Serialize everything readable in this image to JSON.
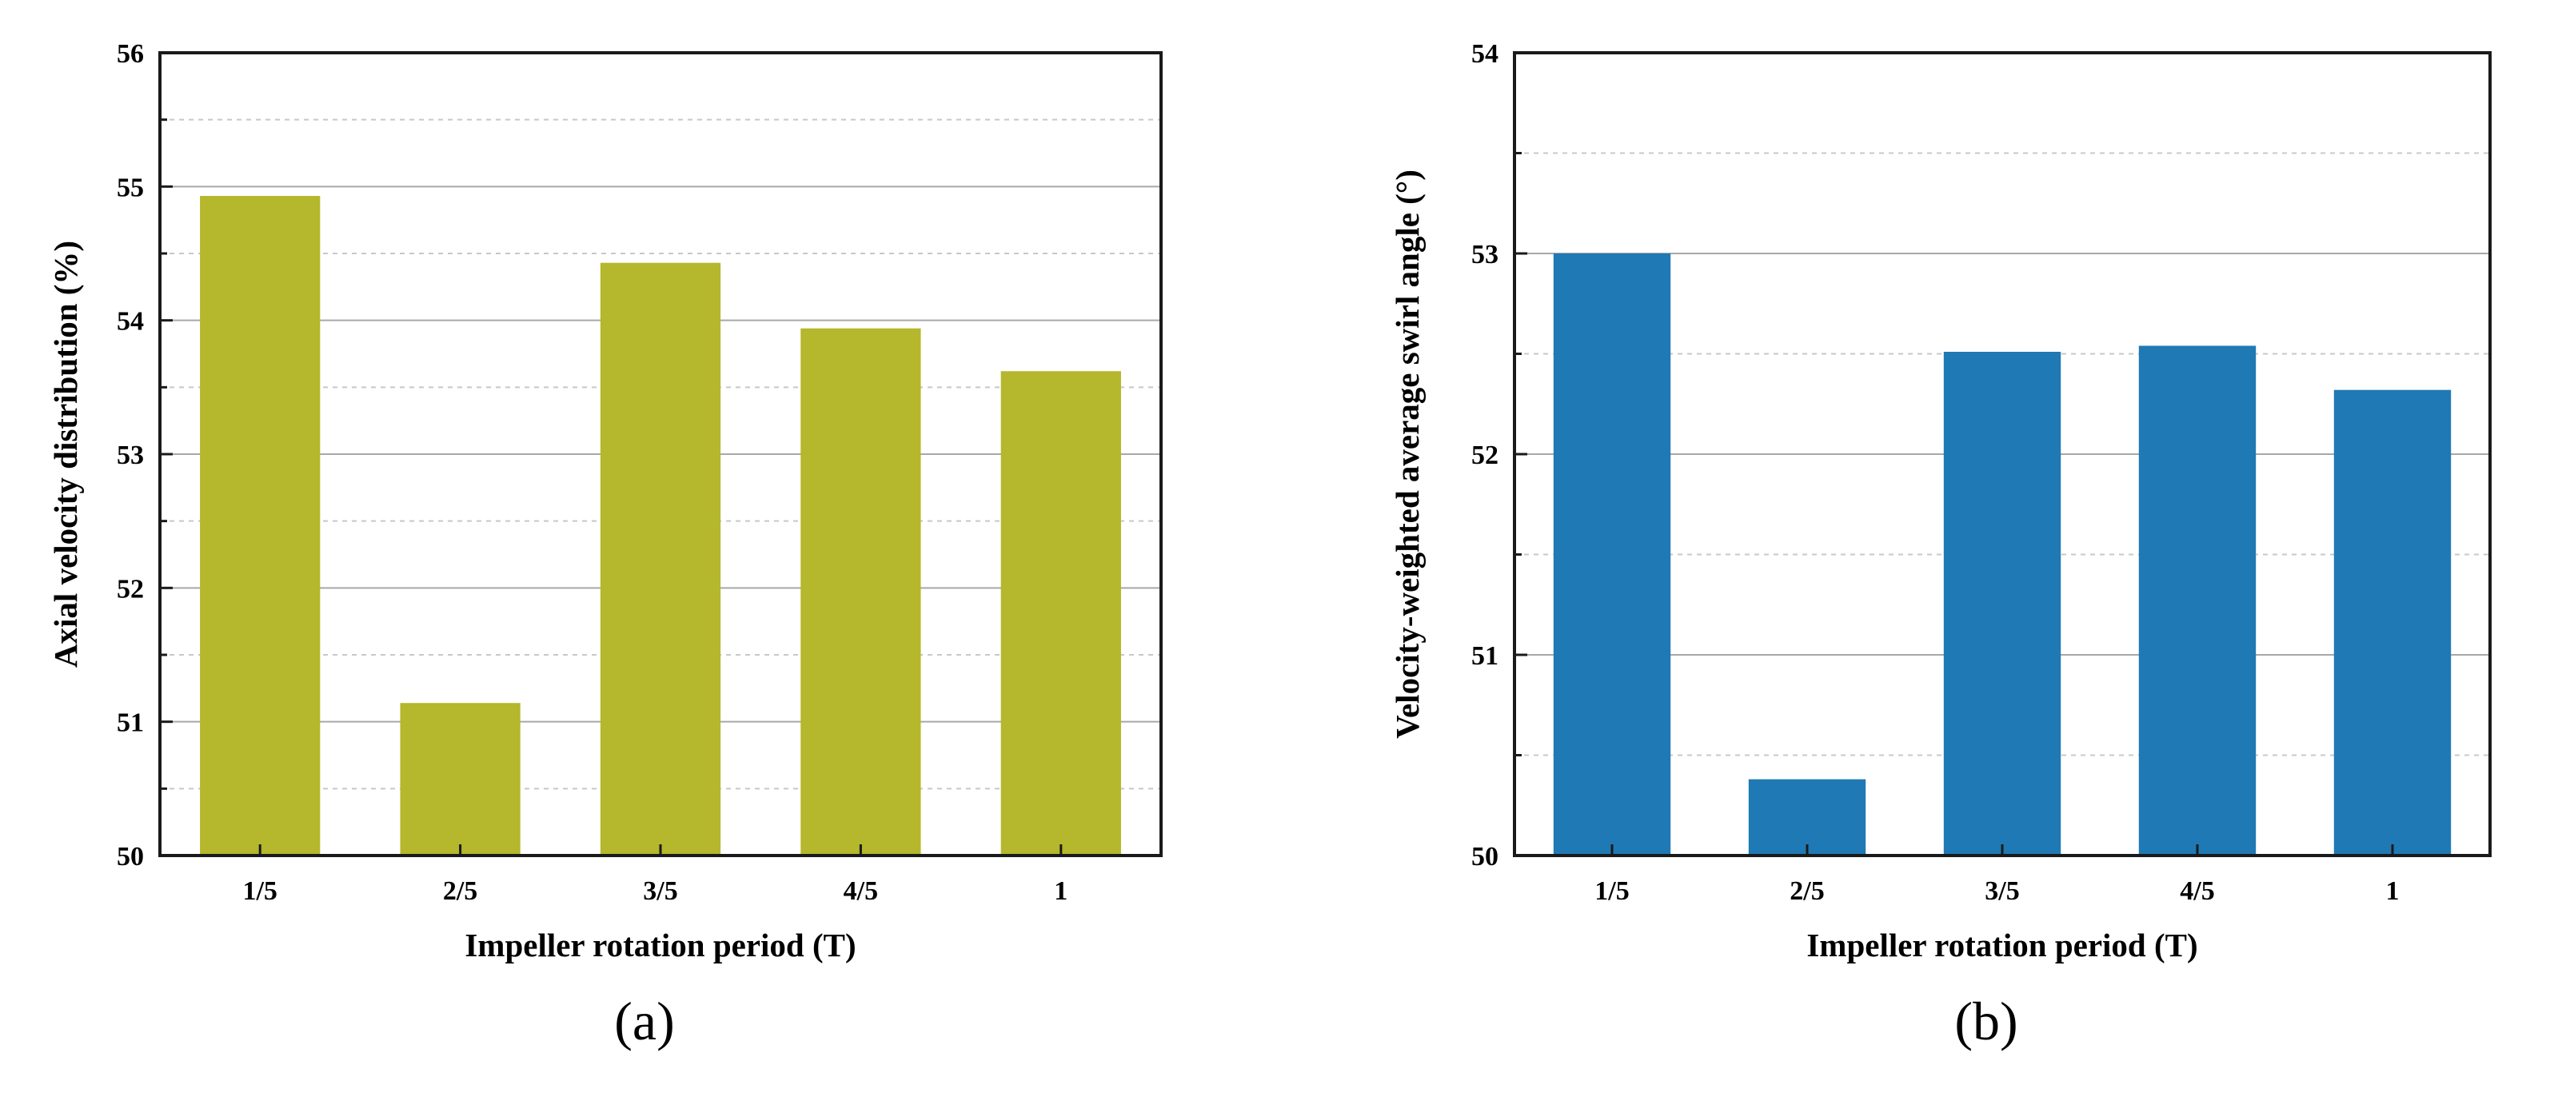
{
  "chart_data": [
    {
      "type": "bar",
      "panel_label": "(a)",
      "categories": [
        "1/5",
        "2/5",
        "3/5",
        "4/5",
        "1"
      ],
      "values": [
        54.93,
        51.14,
        54.43,
        53.94,
        53.62
      ],
      "xlabel": "Impeller rotation period (T)",
      "ylabel": "Axial velocity distribution (%)",
      "ylim": [
        50,
        56
      ],
      "yticks": [
        50,
        51,
        52,
        53,
        54,
        55,
        56
      ],
      "ytick_labels": [
        "50",
        "51",
        "52",
        "53",
        "54",
        "55",
        "56"
      ],
      "minor_step": 0.5,
      "color": "#b5b72c",
      "grid": true
    },
    {
      "type": "bar",
      "panel_label": "(b)",
      "categories": [
        "1/5",
        "2/5",
        "3/5",
        "4/5",
        "1"
      ],
      "values": [
        53.0,
        50.38,
        52.51,
        52.54,
        52.32
      ],
      "xlabel": "Impeller rotation period (T)",
      "ylabel": "Velocity-weighted average swirl angle (°)",
      "ylim": [
        50,
        54
      ],
      "yticks": [
        50,
        51,
        52,
        53,
        54
      ],
      "ytick_labels": [
        "50",
        "51",
        "52",
        "53",
        "54"
      ],
      "minor_step": 0.5,
      "color": "#1f79b4",
      "grid": true
    }
  ]
}
